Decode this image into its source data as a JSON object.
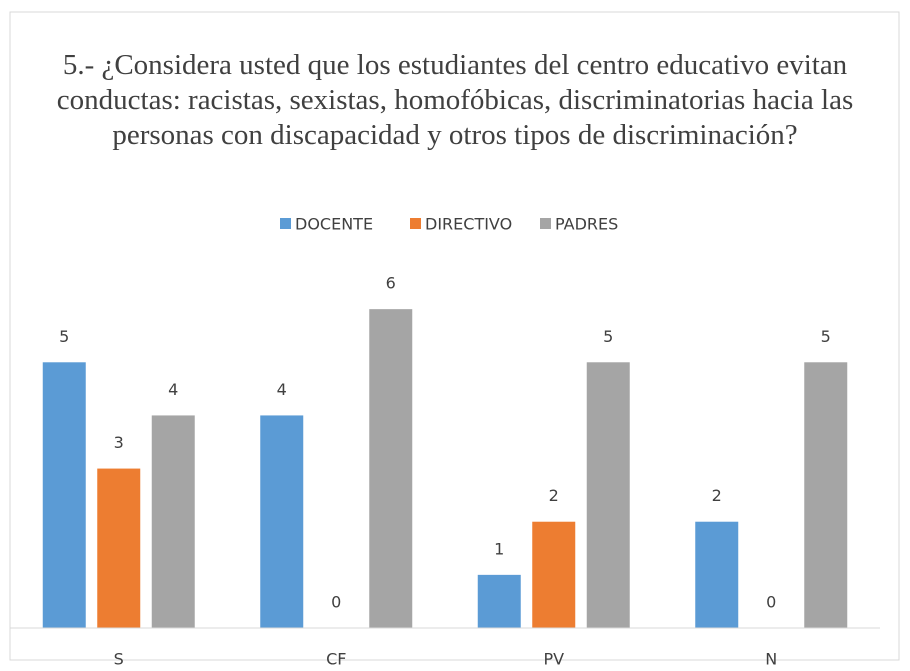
{
  "chart_data": {
    "type": "bar",
    "title": "5.- ¿Considera usted que los estudiantes del centro educativo evitan conductas: racistas, sexistas, homofóbicas, discriminatorias hacia las personas con discapacidad y otros tipos de discriminación?",
    "categories": [
      "S",
      "CF",
      "PV",
      "N"
    ],
    "series": [
      {
        "name": "DOCENTE",
        "color": "#5b9bd5",
        "values": [
          5,
          4,
          1,
          2
        ]
      },
      {
        "name": "DIRECTIVO",
        "color": "#ed7d31",
        "values": [
          3,
          0,
          2,
          0
        ]
      },
      {
        "name": "PADRES",
        "color": "#a5a5a5",
        "values": [
          4,
          6,
          5,
          5
        ]
      }
    ],
    "ylim": [
      0,
      7
    ],
    "legend": "top"
  }
}
